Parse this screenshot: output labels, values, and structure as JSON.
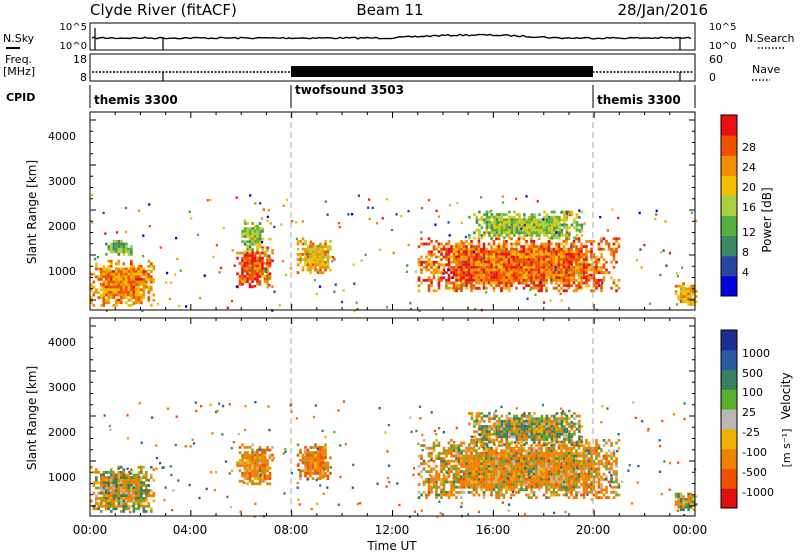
{
  "header": {
    "station": "Clyde River (fitACF)",
    "beam": "Beam 11",
    "date": "28/Jan/2016"
  },
  "nsky_panel": {
    "left_label": "N.Sky",
    "right_label": "N.Search",
    "left_ticks": [
      "10^5",
      "10^0"
    ],
    "right_ticks": [
      "10^5",
      "10^0"
    ]
  },
  "freq_panel": {
    "left_label": "Freq.",
    "left_unit": "[MHz]",
    "left_ticks": [
      "18",
      "8"
    ],
    "right_label": "Nave",
    "right_ticks": [
      "60",
      "0"
    ]
  },
  "cpid": {
    "label": "CPID",
    "segments": [
      {
        "name": "themis 3300",
        "start_h": 0,
        "end_h": 8
      },
      {
        "name": "twofsound 3503",
        "start_h": 8,
        "end_h": 20
      },
      {
        "name": "themis 3300",
        "start_h": 20,
        "end_h": 24
      }
    ]
  },
  "x_axis": {
    "title": "Time UT",
    "ticks": [
      "00:00",
      "04:00",
      "08:00",
      "12:00",
      "16:00",
      "20:00",
      "00:00"
    ]
  },
  "power_panel": {
    "ylabel": "Slant Range [km]",
    "yticks": [
      "4000",
      "3000",
      "2000",
      "1000"
    ],
    "colorbar_label": "Power [dB]",
    "colorbar_ticks": [
      "28",
      "24",
      "20",
      "16",
      "12",
      "8",
      "4"
    ],
    "colors": [
      "#0000e0",
      "#2846a0",
      "#3a8a64",
      "#54b040",
      "#a8d040",
      "#f0c000",
      "#f09000",
      "#f05000",
      "#e81010"
    ]
  },
  "velocity_panel": {
    "ylabel": "Slant Range [km]",
    "yticks": [
      "4000",
      "3000",
      "2000",
      "1000"
    ],
    "colorbar_label": "Velocity",
    "colorbar_unit": "[m s⁻¹]",
    "colorbar_ticks": [
      "1000",
      "500",
      "100",
      "25",
      "-25",
      "-100",
      "-500",
      "-1000"
    ],
    "colors": [
      "#1a2f90",
      "#2a5aa0",
      "#3a8060",
      "#58b030",
      "#b8b8b8",
      "#f0b000",
      "#f08000",
      "#f05000",
      "#e01010"
    ]
  },
  "chart_data": [
    {
      "type": "heatmap",
      "title": "Power",
      "x": {
        "label": "Time UT",
        "range_hours": [
          0,
          24
        ]
      },
      "y": {
        "label": "Slant Range [km]",
        "range_km": [
          180,
          4600
        ]
      },
      "value_label": "Power [dB]",
      "value_range": [
        0,
        30
      ],
      "regions": [
        {
          "t": [
            0.0,
            2.5
          ],
          "r": [
            300,
            1300
          ],
          "level": 22
        },
        {
          "t": [
            0.6,
            1.6
          ],
          "r": [
            1400,
            1800
          ],
          "level": 12
        },
        {
          "t": [
            5.8,
            7.2
          ],
          "r": [
            700,
            1600
          ],
          "level": 25
        },
        {
          "t": [
            6.0,
            6.9
          ],
          "r": [
            1500,
            2200
          ],
          "level": 14
        },
        {
          "t": [
            8.2,
            9.5
          ],
          "r": [
            1000,
            1800
          ],
          "level": 20
        },
        {
          "t": [
            13.0,
            21.0
          ],
          "r": [
            600,
            1800
          ],
          "level": 24
        },
        {
          "t": [
            15.0,
            19.5
          ],
          "r": [
            1800,
            2400
          ],
          "level": 14
        },
        {
          "t": [
            23.2,
            24.0
          ],
          "r": [
            300,
            800
          ],
          "level": 20
        }
      ]
    },
    {
      "type": "heatmap",
      "title": "Velocity",
      "x": {
        "label": "Time UT",
        "range_hours": [
          0,
          24
        ]
      },
      "y": {
        "label": "Slant Range [km]",
        "range_km": [
          180,
          4600
        ]
      },
      "value_label": "Velocity [m s-1]",
      "value_range": [
        -1000,
        1000
      ],
      "regions": [
        {
          "t": [
            0.0,
            2.5
          ],
          "r": [
            300,
            1300
          ],
          "level": -50
        },
        {
          "t": [
            5.8,
            7.2
          ],
          "r": [
            900,
            1800
          ],
          "level": -300
        },
        {
          "t": [
            8.2,
            9.5
          ],
          "r": [
            1000,
            1800
          ],
          "level": -300
        },
        {
          "t": [
            13.0,
            21.0
          ],
          "r": [
            600,
            1900
          ],
          "level": -200
        },
        {
          "t": [
            15.0,
            19.5
          ],
          "r": [
            1800,
            2500
          ],
          "level": 20
        },
        {
          "t": [
            23.2,
            24.0
          ],
          "r": [
            300,
            700
          ],
          "level": -50
        }
      ]
    }
  ]
}
